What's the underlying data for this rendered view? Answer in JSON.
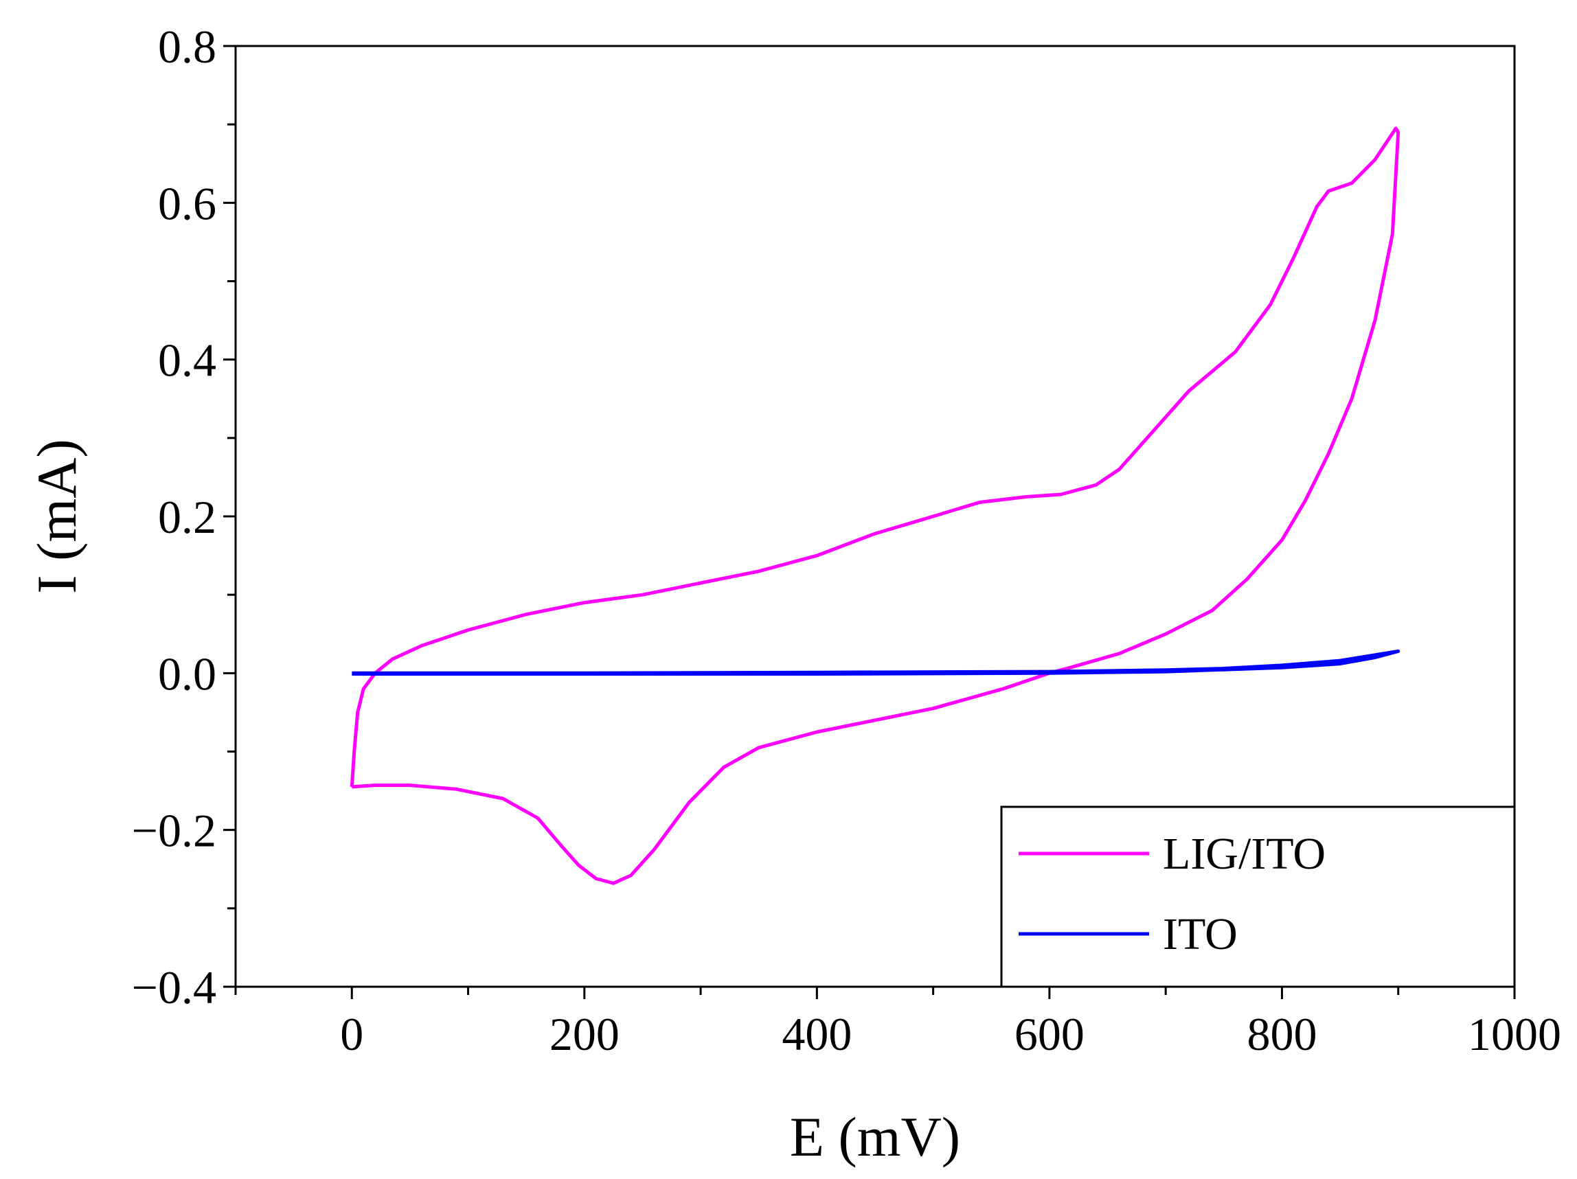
{
  "chart_data": {
    "type": "line",
    "title": "",
    "xlabel": "E (mV)",
    "ylabel": "I (mA)",
    "xlim": [
      -100,
      1000
    ],
    "ylim": [
      -0.4,
      0.8
    ],
    "x_ticks": [
      0,
      200,
      400,
      600,
      800,
      1000
    ],
    "x_tick_labels": [
      "0",
      "200",
      "400",
      "600",
      "800",
      "1000"
    ],
    "y_ticks": [
      -0.4,
      -0.2,
      0.0,
      0.2,
      0.4,
      0.6,
      0.8
    ],
    "y_tick_labels": [
      "−0.4",
      "−0.2",
      "0.0",
      "0.2",
      "0.4",
      "0.6",
      "0.8"
    ],
    "grid": false,
    "legend_position": "bottom-right",
    "series": [
      {
        "name": "LIG/ITO",
        "color": "#ff00ff",
        "points": [
          [
            0,
            -0.145
          ],
          [
            2,
            -0.1
          ],
          [
            5,
            -0.05
          ],
          [
            10,
            -0.02
          ],
          [
            20,
            0.0
          ],
          [
            35,
            0.018
          ],
          [
            60,
            0.035
          ],
          [
            100,
            0.055
          ],
          [
            150,
            0.075
          ],
          [
            200,
            0.09
          ],
          [
            250,
            0.1
          ],
          [
            300,
            0.115
          ],
          [
            350,
            0.13
          ],
          [
            400,
            0.15
          ],
          [
            450,
            0.178
          ],
          [
            500,
            0.2
          ],
          [
            540,
            0.218
          ],
          [
            580,
            0.225
          ],
          [
            610,
            0.228
          ],
          [
            640,
            0.24
          ],
          [
            660,
            0.26
          ],
          [
            690,
            0.31
          ],
          [
            720,
            0.36
          ],
          [
            760,
            0.41
          ],
          [
            790,
            0.47
          ],
          [
            810,
            0.53
          ],
          [
            830,
            0.595
          ],
          [
            840,
            0.615
          ],
          [
            860,
            0.625
          ],
          [
            880,
            0.655
          ],
          [
            898,
            0.695
          ],
          [
            900,
            0.69
          ],
          [
            895,
            0.56
          ],
          [
            880,
            0.45
          ],
          [
            860,
            0.35
          ],
          [
            840,
            0.28
          ],
          [
            820,
            0.22
          ],
          [
            800,
            0.17
          ],
          [
            770,
            0.12
          ],
          [
            740,
            0.08
          ],
          [
            700,
            0.05
          ],
          [
            660,
            0.025
          ],
          [
            620,
            0.008
          ],
          [
            600,
            0.0
          ],
          [
            560,
            -0.02
          ],
          [
            500,
            -0.045
          ],
          [
            450,
            -0.06
          ],
          [
            400,
            -0.075
          ],
          [
            350,
            -0.095
          ],
          [
            320,
            -0.12
          ],
          [
            290,
            -0.165
          ],
          [
            260,
            -0.225
          ],
          [
            240,
            -0.258
          ],
          [
            225,
            -0.268
          ],
          [
            210,
            -0.262
          ],
          [
            195,
            -0.245
          ],
          [
            180,
            -0.22
          ],
          [
            160,
            -0.185
          ],
          [
            130,
            -0.16
          ],
          [
            90,
            -0.148
          ],
          [
            50,
            -0.143
          ],
          [
            20,
            -0.143
          ],
          [
            0,
            -0.145
          ]
        ]
      },
      {
        "name": "ITO",
        "color": "#0000ff",
        "points": [
          [
            0,
            0.0
          ],
          [
            200,
            0.0
          ],
          [
            400,
            0.001
          ],
          [
            600,
            0.002
          ],
          [
            700,
            0.004
          ],
          [
            750,
            0.006
          ],
          [
            800,
            0.01
          ],
          [
            850,
            0.016
          ],
          [
            900,
            0.028
          ],
          [
            880,
            0.02
          ],
          [
            850,
            0.012
          ],
          [
            800,
            0.007
          ],
          [
            700,
            0.002
          ],
          [
            600,
            0.0
          ],
          [
            400,
            -0.001
          ],
          [
            200,
            -0.001
          ],
          [
            0,
            -0.001
          ]
        ]
      }
    ]
  }
}
